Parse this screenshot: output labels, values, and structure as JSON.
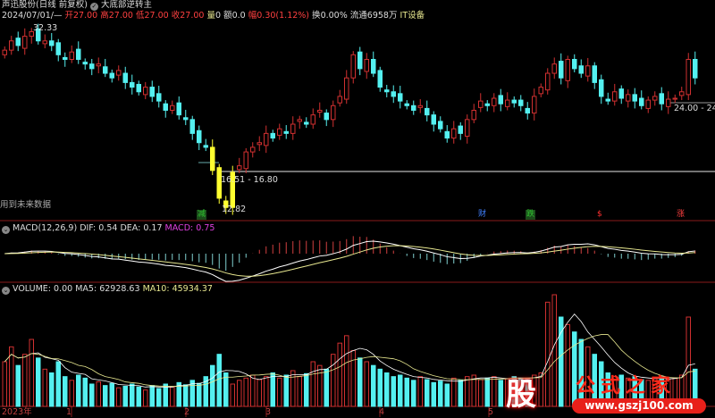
{
  "header": {
    "title": "声迅股份(日线 前复权)",
    "formula": "大底部逆转主",
    "date": "2024/07/01/—",
    "open_label": "开",
    "open": "27.00",
    "high_label": "高",
    "high": "27.00",
    "low_label": "低",
    "low": "27.00",
    "close_label": "收",
    "close": "27.00",
    "vol_label": "量",
    "vol": "0",
    "amount_label": "额",
    "amount": "0.0",
    "range_label": "幅",
    "range": "0.30(1.12%)",
    "turnover_label": "换",
    "turnover": "0.00%",
    "float_label": "流通",
    "float": "6958万",
    "sector": "IT设备"
  },
  "annotations": {
    "high_price": "32.33",
    "zone_low": "16.51 - 16.80",
    "low_price": "12.82",
    "zone_right": "24.00 - 24.3",
    "future_warning": "用到未来数据",
    "markers": [
      {
        "text": "减",
        "color": "#30c030"
      },
      {
        "text": "财",
        "color": "#4080ff"
      },
      {
        "text": "跌",
        "color": "#30c030"
      },
      {
        "text": "$",
        "color": "#ff3030"
      },
      {
        "text": "涨",
        "color": "#ff4040"
      }
    ]
  },
  "macd": {
    "label": "MACD(12,26,9)",
    "dif_label": "DIF:",
    "dif": "0.54",
    "dea_label": "DEA:",
    "dea": "0.17",
    "macd_label": "MACD:",
    "macd": "0.75"
  },
  "volume": {
    "label": "VOLUME:",
    "value": "0.00",
    "ma5_label": "MA5:",
    "ma5": "62928.63",
    "ma10_label": "MA10:",
    "ma10": "45934.37"
  },
  "xaxis": {
    "labels": [
      "2023年",
      "1",
      "2",
      "3",
      "4",
      "5"
    ]
  },
  "logo": {
    "glyph": "股",
    "name": "公式之家",
    "url": "www.gszj100.com"
  },
  "colors": {
    "up": "#d03030",
    "down": "#54f0f0",
    "special": "#ffff30",
    "dif": "#ffffff",
    "dea": "#e8e890",
    "macd_up": "#d04040",
    "macd_down": "#80d0d0",
    "grid": "#8a1a1a"
  },
  "chart_data": {
    "type": "candlestick",
    "close": [
      30,
      31,
      30.5,
      31.5,
      32,
      31,
      31,
      30.5,
      29.5,
      29,
      29.8,
      29,
      28.5,
      28,
      28.5,
      27.5,
      27,
      27.8,
      26.5,
      26,
      25.5,
      26,
      25,
      24.5,
      23.5,
      24,
      23,
      22.5,
      21,
      20,
      19.5,
      17,
      14,
      13,
      16.8,
      17.5,
      19,
      19.5,
      20,
      21,
      20.5,
      21.5,
      21,
      22,
      22.5,
      22,
      23,
      23.5,
      22.5,
      24,
      25,
      27,
      29.5,
      28,
      29,
      27.5,
      26,
      25.5,
      25,
      24.5,
      24,
      23.5,
      24,
      23,
      22,
      21.5,
      20.5,
      21.5,
      21,
      22.5,
      23.5,
      24.5,
      24,
      24.8,
      24.2,
      24.6,
      24.3,
      24,
      23.2,
      25,
      26,
      27.5,
      28.5,
      27,
      29,
      28,
      27.5,
      28.3,
      26.5,
      25,
      24.5,
      25.5,
      24.8,
      25.2,
      24.5,
      24,
      24.6,
      25,
      24.2,
      24.7,
      24.8,
      25.5,
      29,
      27
    ],
    "volume": [
      60000,
      80000,
      55000,
      70000,
      90000,
      65000,
      50000,
      45000,
      60000,
      40000,
      35000,
      42000,
      38000,
      30000,
      33000,
      28000,
      31000,
      25000,
      27000,
      30000,
      26000,
      22000,
      28000,
      24000,
      30000,
      26000,
      32000,
      29000,
      35000,
      31000,
      40000,
      55000,
      70000,
      45000,
      30000,
      35000,
      38000,
      42000,
      36000,
      40000,
      45000,
      38000,
      42000,
      48000,
      40000,
      44000,
      60000,
      55000,
      50000,
      70000,
      85000,
      95000,
      75000,
      65000,
      60000,
      55000,
      50000,
      45000,
      40000,
      42000,
      38000,
      35000,
      40000,
      36000,
      32000,
      34000,
      30000,
      38000,
      35000,
      40000,
      42000,
      36000,
      38000,
      40000,
      35000,
      37000,
      40000,
      38000,
      36000,
      42000,
      45000,
      140000,
      150000,
      120000,
      110000,
      100000,
      90000,
      80000,
      70000,
      60000,
      45000,
      40000,
      42000,
      38000,
      40000,
      36000,
      35000,
      38000,
      40000,
      36000,
      38000,
      42000,
      120000,
      50000
    ],
    "markers": [
      "high 32.33",
      "low 12.82"
    ]
  }
}
